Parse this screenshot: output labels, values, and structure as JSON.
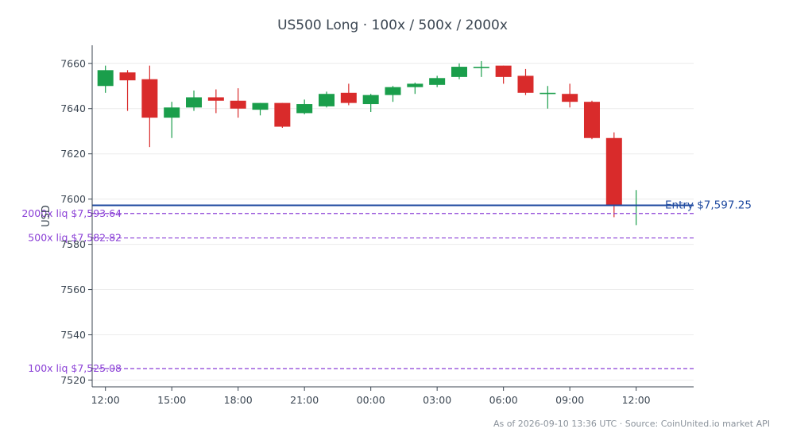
{
  "colors": {
    "up": "#1a9e4b",
    "down": "#d92b2b",
    "entry": "#1f4aa0",
    "liq": "#8a3fd6",
    "axis": "#3b4652",
    "grid": "#ececec"
  },
  "chart_data": {
    "type": "candlestick",
    "title": "US500 Long · 100x / 500x / 2000x",
    "xlabel": "",
    "ylabel": "USD",
    "ylim": [
      7517,
      7668
    ],
    "xlim": [
      -0.6,
      26.6
    ],
    "grid": true,
    "y_ticks": [
      7520,
      7540,
      7560,
      7580,
      7600,
      7620,
      7640,
      7660
    ],
    "x_ticks": [
      {
        "i": 0,
        "label": "12:00"
      },
      {
        "i": 3,
        "label": "15:00"
      },
      {
        "i": 6,
        "label": "18:00"
      },
      {
        "i": 9,
        "label": "21:00"
      },
      {
        "i": 12,
        "label": "00:00"
      },
      {
        "i": 15,
        "label": "03:00"
      },
      {
        "i": 18,
        "label": "06:00"
      },
      {
        "i": 21,
        "label": "09:00"
      },
      {
        "i": 24,
        "label": "12:00"
      }
    ],
    "candles": [
      {
        "t": "13:00",
        "o": 7650,
        "h": 7659,
        "l": 7647,
        "c": 7657
      },
      {
        "t": "14:00",
        "o": 7656,
        "h": 7657,
        "l": 7639,
        "c": 7652.5
      },
      {
        "t": "15:00",
        "o": 7653,
        "h": 7659,
        "l": 7623,
        "c": 7636
      },
      {
        "t": "16:00",
        "o": 7636,
        "h": 7643,
        "l": 7627,
        "c": 7640.5
      },
      {
        "t": "17:00",
        "o": 7640.5,
        "h": 7648,
        "l": 7639,
        "c": 7645
      },
      {
        "t": "18:00",
        "o": 7645,
        "h": 7648.5,
        "l": 7638,
        "c": 7643.5
      },
      {
        "t": "19:00",
        "o": 7643.5,
        "h": 7649,
        "l": 7636,
        "c": 7640
      },
      {
        "t": "20:00",
        "o": 7639.5,
        "h": 7642.5,
        "l": 7637,
        "c": 7642.5
      },
      {
        "t": "21:00",
        "o": 7642.5,
        "h": 7642.5,
        "l": 7631.5,
        "c": 7632
      },
      {
        "t": "22:00",
        "o": 7638,
        "h": 7644,
        "l": 7637.5,
        "c": 7642
      },
      {
        "t": "23:00",
        "o": 7641,
        "h": 7647.5,
        "l": 7640.5,
        "c": 7646.5
      },
      {
        "t": "00:00",
        "o": 7647,
        "h": 7651,
        "l": 7641.5,
        "c": 7642.5
      },
      {
        "t": "01:00",
        "o": 7642,
        "h": 7646.5,
        "l": 7638.5,
        "c": 7646
      },
      {
        "t": "02:00",
        "o": 7646,
        "h": 7650,
        "l": 7643,
        "c": 7649.5
      },
      {
        "t": "03:00",
        "o": 7649.5,
        "h": 7651.5,
        "l": 7646.5,
        "c": 7651
      },
      {
        "t": "04:00",
        "o": 7650.5,
        "h": 7654.5,
        "l": 7649.5,
        "c": 7653.5
      },
      {
        "t": "05:00",
        "o": 7654,
        "h": 7660,
        "l": 7653,
        "c": 7658.5
      },
      {
        "t": "06:00",
        "o": 7658,
        "h": 7661,
        "l": 7654,
        "c": 7658.5
      },
      {
        "t": "07:00",
        "o": 7659,
        "h": 7659,
        "l": 7651,
        "c": 7654
      },
      {
        "t": "08:00",
        "o": 7654.5,
        "h": 7657.5,
        "l": 7646,
        "c": 7647
      },
      {
        "t": "09:00",
        "o": 7647,
        "h": 7650,
        "l": 7640,
        "c": 7647
      },
      {
        "t": "10:00",
        "o": 7646.5,
        "h": 7651,
        "l": 7640.5,
        "c": 7643
      },
      {
        "t": "11:00",
        "o": 7643,
        "h": 7643.5,
        "l": 7626.5,
        "c": 7627
      },
      {
        "t": "12:00",
        "o": 7627,
        "h": 7629.5,
        "l": 7592,
        "c": 7597
      },
      {
        "t": "13:00",
        "o": 7597,
        "h": 7604,
        "l": 7588.5,
        "c": 7597.5
      }
    ],
    "lines": [
      {
        "name": "Entry",
        "label": "Entry $7,597.25",
        "value": 7597.25,
        "style": "solid"
      },
      {
        "name": "2000x liq",
        "label": "2000x liq $7,593.64",
        "value": 7593.64,
        "style": "dashed"
      },
      {
        "name": "500x liq",
        "label": "500x liq $7,582.82",
        "value": 7582.82,
        "style": "dashed"
      },
      {
        "name": "100x liq",
        "label": "100x liq $7,525.08",
        "value": 7525.08,
        "style": "dashed"
      }
    ]
  },
  "footer": "As of 2026-09-10 13:36 UTC · Source: CoinUnited.io market API"
}
